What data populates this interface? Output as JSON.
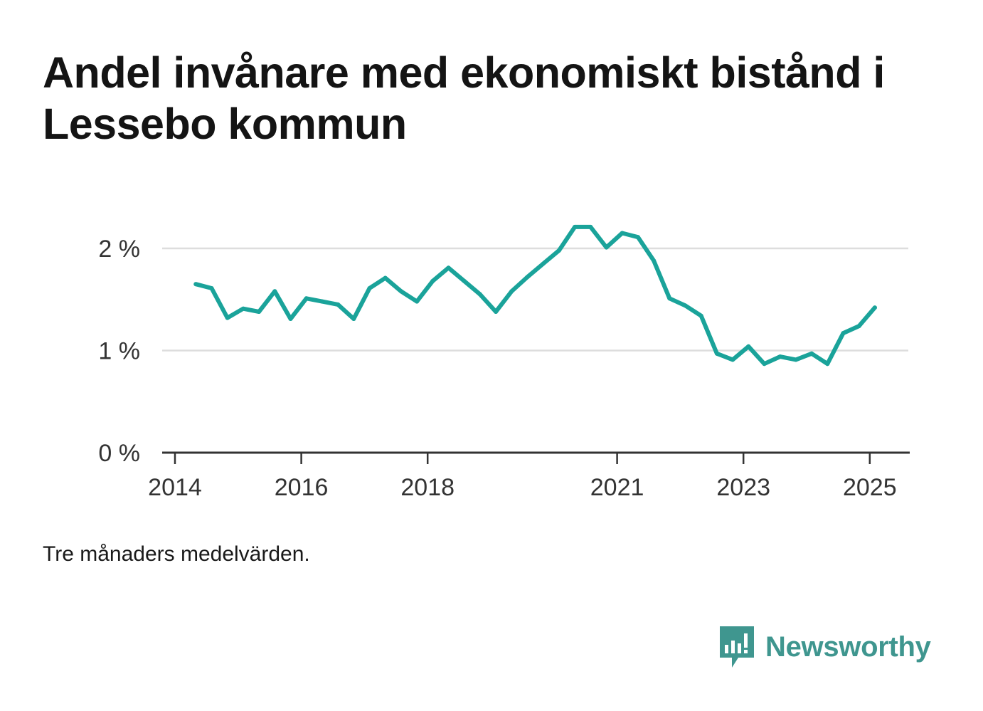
{
  "title": "Andel invånare med ekonomiskt bistånd i Lessebo kommun",
  "footnote": "Tre månaders medelvärden.",
  "brand": {
    "name": "Newsworthy",
    "icon": "newsworthy-logo-icon",
    "color": "#3f968f"
  },
  "chart_data": {
    "type": "line",
    "title": "Andel invånare med ekonomiskt bistånd i Lessebo kommun",
    "xlabel": "",
    "ylabel": "",
    "ylim": [
      0,
      2.5
    ],
    "y_ticks": [
      {
        "value": 0,
        "label": "0 %"
      },
      {
        "value": 1,
        "label": "1 %"
      },
      {
        "value": 2,
        "label": "2 %"
      }
    ],
    "x_ticks": [
      {
        "value": 2014,
        "label": "2014"
      },
      {
        "value": 2016,
        "label": "2016"
      },
      {
        "value": 2018,
        "label": "2018"
      },
      {
        "value": 2021,
        "label": "2021"
      },
      {
        "value": 2023,
        "label": "2023"
      },
      {
        "value": 2025,
        "label": "2025"
      }
    ],
    "grid": true,
    "line_color": "#1aa39a",
    "series": [
      {
        "x": [
          2014.33,
          2014.58,
          2014.83,
          2015.08,
          2015.33,
          2015.58,
          2015.83,
          2016.08,
          2016.33,
          2016.58,
          2016.83,
          2017.08,
          2017.33,
          2017.58,
          2017.83,
          2018.08,
          2018.33,
          2018.58,
          2018.83,
          2019.08,
          2019.33,
          2019.58,
          2019.83,
          2020.08,
          2020.33,
          2020.58,
          2020.83,
          2021.08,
          2021.33,
          2021.58,
          2021.83,
          2022.08,
          2022.33,
          2022.58,
          2022.83,
          2023.08,
          2023.33,
          2023.58,
          2023.83,
          2024.08,
          2024.33,
          2024.58,
          2024.83,
          2025.08
        ],
        "y": [
          1.65,
          1.61,
          1.32,
          1.41,
          1.38,
          1.58,
          1.31,
          1.51,
          1.48,
          1.45,
          1.31,
          1.61,
          1.71,
          1.58,
          1.48,
          1.68,
          1.81,
          1.68,
          1.55,
          1.38,
          1.58,
          1.72,
          1.85,
          1.98,
          2.21,
          2.21,
          2.01,
          2.15,
          2.11,
          1.88,
          1.51,
          1.44,
          1.34,
          0.97,
          0.91,
          1.04,
          0.87,
          0.94,
          0.91,
          0.97,
          0.87,
          1.17,
          1.24,
          1.42
        ]
      }
    ]
  }
}
